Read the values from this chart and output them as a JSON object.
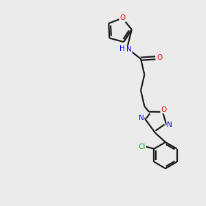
{
  "background_color": "#ebebeb",
  "bond_color": "#1a1a1a",
  "nitrogen_color": "#0000ff",
  "oxygen_color": "#ff0000",
  "chlorine_color": "#00bb00",
  "nh_color": "#0000ff",
  "figsize": [
    3.0,
    3.0
  ],
  "dpi": 100,
  "xlim": [
    0,
    10
  ],
  "ylim": [
    0,
    10
  ]
}
